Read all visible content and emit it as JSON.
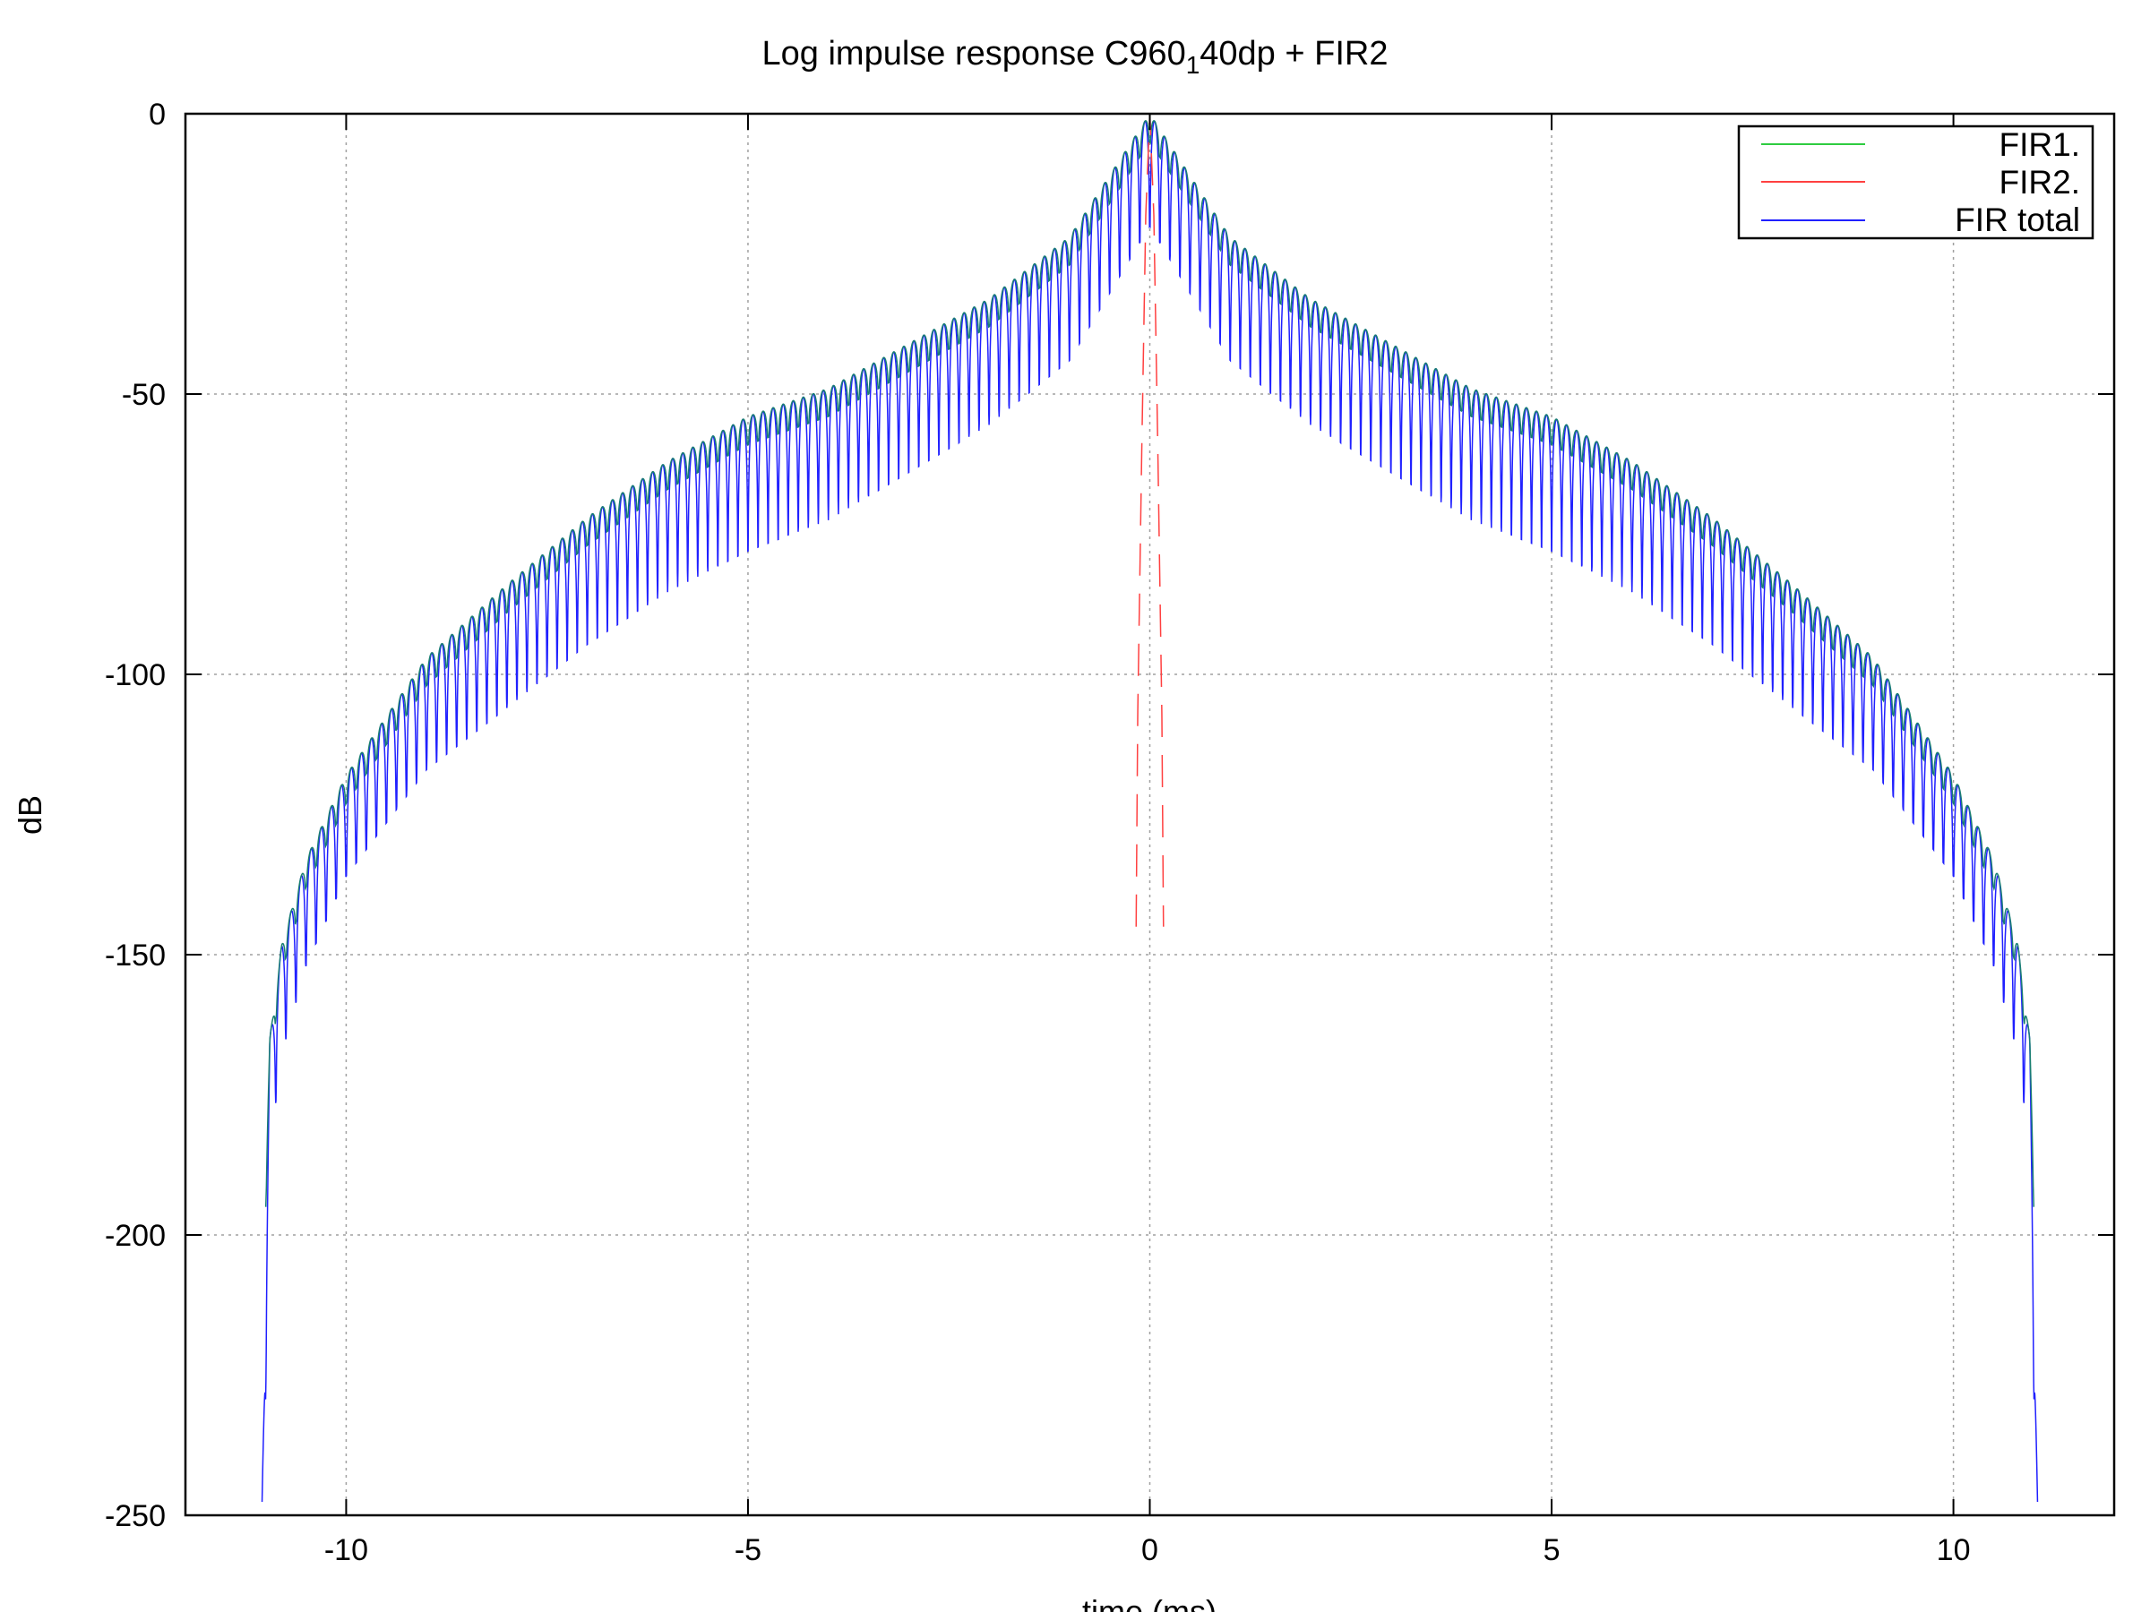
{
  "chart_data": {
    "type": "line",
    "title": {
      "main": "Log impulse response C960",
      "subscript": "1",
      "rest": "40dp + FIR2"
    },
    "xlabel": "time (ms)",
    "ylabel": "dB",
    "xlim": [
      -12,
      12
    ],
    "ylim": [
      -250,
      0
    ],
    "xticks": [
      -10,
      -5,
      0,
      5,
      10
    ],
    "xtick_labels": [
      "-10",
      "-5",
      "0",
      "5",
      "10"
    ],
    "yticks": [
      0,
      -50,
      -100,
      -150,
      -200,
      -250
    ],
    "ytick_labels": [
      "0",
      "-50",
      "-100",
      "-150",
      "-200",
      "-250"
    ],
    "grid": true,
    "legend_position": "top-right",
    "series": [
      {
        "name": "FIR1.",
        "color": "#2ecc40",
        "time_span_ms": [
          -11.0,
          11.0
        ],
        "peak_db": 0,
        "envelope_db": [
          [
            0,
            0
          ],
          [
            1,
            -22
          ],
          [
            2,
            -33
          ],
          [
            3,
            -41
          ],
          [
            4,
            -49
          ],
          [
            5,
            -54
          ],
          [
            6,
            -62
          ],
          [
            7,
            -72
          ],
          [
            8,
            -84
          ],
          [
            9,
            -97
          ],
          [
            10,
            -118
          ],
          [
            10.5,
            -133
          ],
          [
            10.8,
            -148
          ],
          [
            10.95,
            -165
          ],
          [
            11.0,
            -190
          ]
        ],
        "lobe_spacing_ms": 0.125
      },
      {
        "name": "FIR2.",
        "color": "#ff4040",
        "time_span_ms": [
          -0.17,
          0.17
        ],
        "peak_db": 0,
        "envelope_db": [
          [
            0,
            0
          ],
          [
            0.05,
            -18
          ],
          [
            0.1,
            -60
          ],
          [
            0.15,
            -107
          ],
          [
            0.17,
            -145
          ]
        ],
        "lobe_spacing_ms": 0.125
      },
      {
        "name": "FIR total",
        "color": "#2020ff",
        "time_span_ms": [
          -11.05,
          11.05
        ],
        "peak_db": 0,
        "envelope_db": [
          [
            0,
            0
          ],
          [
            1,
            -22
          ],
          [
            2,
            -33
          ],
          [
            3,
            -41
          ],
          [
            4,
            -49
          ],
          [
            5,
            -54
          ],
          [
            6,
            -62
          ],
          [
            7,
            -72
          ],
          [
            8,
            -84
          ],
          [
            9,
            -97
          ],
          [
            10,
            -118
          ],
          [
            10.5,
            -133
          ],
          [
            10.8,
            -148
          ],
          [
            10.95,
            -165
          ],
          [
            11.05,
            -250
          ]
        ],
        "null_floor_offset_db": [
          [
            0,
            -20
          ],
          [
            1,
            -22
          ],
          [
            5,
            -24
          ],
          [
            8,
            -22
          ],
          [
            10,
            -18
          ],
          [
            11,
            -20
          ]
        ],
        "lobe_spacing_ms": 0.125
      }
    ]
  },
  "colors": {
    "background": "#ffffff",
    "frame": "#000000",
    "grid": "#a0a0a0",
    "fir1_teal": "#1a7f72"
  }
}
